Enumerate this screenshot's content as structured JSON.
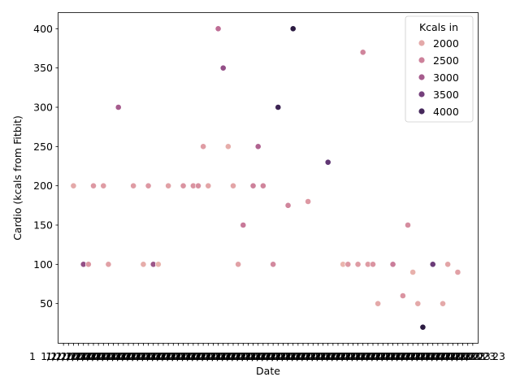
{
  "chart_data": {
    "type": "scatter",
    "xlabel": "Date",
    "ylabel": "Cardio (kcals from Fitbit)",
    "ylim": [
      0,
      420
    ],
    "yticks": [
      50,
      100,
      150,
      200,
      250,
      300,
      350,
      400
    ],
    "x_tick_label_visible": "1/2/2023",
    "x_tick_label_first_fragment": "1",
    "x_tick_label_last_fragment": "23",
    "grid": false,
    "legend": {
      "title": "Kcals in",
      "placement": "top-right",
      "entries": [
        "2000",
        "2500",
        "3000",
        "3500",
        "4000"
      ],
      "entry_values": [
        2000,
        2500,
        3000,
        3500,
        4000
      ]
    },
    "colormap": {
      "min": 1650,
      "max": 4300,
      "stops": [
        "#f1c6b4",
        "#de9aa3",
        "#c27096",
        "#8f4c86",
        "#5a3471",
        "#2b1a41"
      ]
    },
    "points": [
      {
        "x": 3,
        "y": 200,
        "kcals_in": 2000
      },
      {
        "x": 5,
        "y": 100,
        "kcals_in": 3200
      },
      {
        "x": 6,
        "y": 100,
        "kcals_in": 2200
      },
      {
        "x": 7,
        "y": 200,
        "kcals_in": 2200
      },
      {
        "x": 9,
        "y": 200,
        "kcals_in": 2150
      },
      {
        "x": 10,
        "y": 100,
        "kcals_in": 2100
      },
      {
        "x": 12,
        "y": 300,
        "kcals_in": 3000
      },
      {
        "x": 15,
        "y": 200,
        "kcals_in": 2150
      },
      {
        "x": 17,
        "y": 100,
        "kcals_in": 1950
      },
      {
        "x": 18,
        "y": 200,
        "kcals_in": 2200
      },
      {
        "x": 19,
        "y": 100,
        "kcals_in": 3100
      },
      {
        "x": 20,
        "y": 100,
        "kcals_in": 1850
      },
      {
        "x": 22,
        "y": 200,
        "kcals_in": 2100
      },
      {
        "x": 25,
        "y": 200,
        "kcals_in": 2250
      },
      {
        "x": 27,
        "y": 200,
        "kcals_in": 2250
      },
      {
        "x": 28,
        "y": 200,
        "kcals_in": 2300
      },
      {
        "x": 29,
        "y": 250,
        "kcals_in": 2150
      },
      {
        "x": 30,
        "y": 200,
        "kcals_in": 2050
      },
      {
        "x": 32,
        "y": 400,
        "kcals_in": 2750
      },
      {
        "x": 33,
        "y": 350,
        "kcals_in": 3200
      },
      {
        "x": 34,
        "y": 250,
        "kcals_in": 1950
      },
      {
        "x": 35,
        "y": 200,
        "kcals_in": 2050
      },
      {
        "x": 36,
        "y": 100,
        "kcals_in": 2100
      },
      {
        "x": 37,
        "y": 150,
        "kcals_in": 2600
      },
      {
        "x": 39,
        "y": 200,
        "kcals_in": 2500
      },
      {
        "x": 40,
        "y": 250,
        "kcals_in": 2900
      },
      {
        "x": 41,
        "y": 200,
        "kcals_in": 2450
      },
      {
        "x": 43,
        "y": 100,
        "kcals_in": 2400
      },
      {
        "x": 44,
        "y": 300,
        "kcals_in": 4100
      },
      {
        "x": 46,
        "y": 175,
        "kcals_in": 2450
      },
      {
        "x": 47,
        "y": 400,
        "kcals_in": 4300
      },
      {
        "x": 50,
        "y": 180,
        "kcals_in": 2200
      },
      {
        "x": 54,
        "y": 230,
        "kcals_in": 3700
      },
      {
        "x": 57,
        "y": 100,
        "kcals_in": 1850
      },
      {
        "x": 58,
        "y": 100,
        "kcals_in": 2200
      },
      {
        "x": 60,
        "y": 100,
        "kcals_in": 2150
      },
      {
        "x": 61,
        "y": 370,
        "kcals_in": 2450
      },
      {
        "x": 62,
        "y": 100,
        "kcals_in": 2150
      },
      {
        "x": 63,
        "y": 100,
        "kcals_in": 2250
      },
      {
        "x": 64,
        "y": 50,
        "kcals_in": 2000
      },
      {
        "x": 67,
        "y": 100,
        "kcals_in": 2550
      },
      {
        "x": 69,
        "y": 60,
        "kcals_in": 2250
      },
      {
        "x": 70,
        "y": 150,
        "kcals_in": 2350
      },
      {
        "x": 71,
        "y": 90,
        "kcals_in": 1900
      },
      {
        "x": 72,
        "y": 50,
        "kcals_in": 2000
      },
      {
        "x": 73,
        "y": 20,
        "kcals_in": 4300
      },
      {
        "x": 75,
        "y": 100,
        "kcals_in": 3600
      },
      {
        "x": 77,
        "y": 50,
        "kcals_in": 2000
      },
      {
        "x": 78,
        "y": 100,
        "kcals_in": 2050
      },
      {
        "x": 80,
        "y": 90,
        "kcals_in": 2100
      }
    ]
  }
}
